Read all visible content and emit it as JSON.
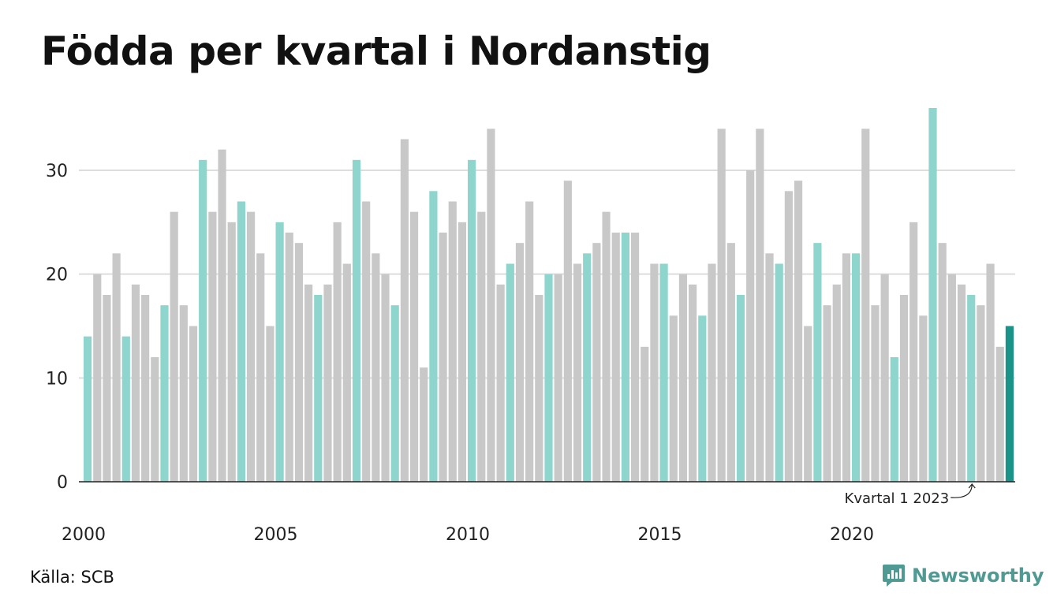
{
  "chart_data": {
    "type": "bar",
    "title": "Födda per kvartal i Nordanstig",
    "xlabel": "",
    "ylabel": "",
    "ylim": [
      0,
      36
    ],
    "yticks": [
      0,
      10,
      20,
      30
    ],
    "xtick_labels": [
      "2000",
      "2005",
      "2010",
      "2015",
      "2020"
    ],
    "grid": true,
    "categories": [
      "2000 K1",
      "2000 K2",
      "2000 K3",
      "2000 K4",
      "2001 K1",
      "2001 K2",
      "2001 K3",
      "2001 K4",
      "2002 K1",
      "2002 K2",
      "2002 K3",
      "2002 K4",
      "2003 K1",
      "2003 K2",
      "2003 K3",
      "2003 K4",
      "2004 K1",
      "2004 K2",
      "2004 K3",
      "2004 K4",
      "2005 K1",
      "2005 K2",
      "2005 K3",
      "2005 K4",
      "2006 K1",
      "2006 K2",
      "2006 K3",
      "2006 K4",
      "2007 K1",
      "2007 K2",
      "2007 K3",
      "2007 K4",
      "2008 K1",
      "2008 K2",
      "2008 K3",
      "2008 K4",
      "2009 K1",
      "2009 K2",
      "2009 K3",
      "2009 K4",
      "2010 K1",
      "2010 K2",
      "2010 K3",
      "2010 K4",
      "2011 K1",
      "2011 K2",
      "2011 K3",
      "2011 K4",
      "2012 K1",
      "2012 K2",
      "2012 K3",
      "2012 K4",
      "2013 K1",
      "2013 K2",
      "2013 K3",
      "2013 K4",
      "2014 K1",
      "2014 K2",
      "2014 K3",
      "2014 K4",
      "2015 K1",
      "2015 K2",
      "2015 K3",
      "2015 K4",
      "2016 K1",
      "2016 K2",
      "2016 K3",
      "2016 K4",
      "2017 K1",
      "2017 K2",
      "2017 K3",
      "2017 K4",
      "2018 K1",
      "2018 K2",
      "2018 K3",
      "2018 K4",
      "2019 K1",
      "2019 K2",
      "2019 K3",
      "2019 K4",
      "2020 K1",
      "2020 K2",
      "2020 K3",
      "2020 K4",
      "2021 K1",
      "2021 K2",
      "2021 K3",
      "2021 K4",
      "2022 K1",
      "2022 K2",
      "2022 K3",
      "2022 K4",
      "2023 K1",
      "2023 K2",
      "2023 K3",
      "2023 K4",
      "2024 K1"
    ],
    "values": [
      14,
      20,
      18,
      22,
      14,
      19,
      18,
      12,
      17,
      26,
      17,
      15,
      31,
      26,
      32,
      25,
      27,
      26,
      22,
      15,
      25,
      24,
      23,
      19,
      18,
      19,
      25,
      21,
      31,
      27,
      22,
      20,
      17,
      33,
      26,
      11,
      28,
      24,
      27,
      25,
      31,
      26,
      34,
      19,
      21,
      23,
      27,
      18,
      20,
      20,
      29,
      21,
      22,
      23,
      26,
      24,
      24,
      24,
      13,
      21,
      21,
      16,
      20,
      19,
      16,
      21,
      34,
      23,
      18,
      30,
      34,
      22,
      21,
      28,
      29,
      15,
      23,
      17,
      19,
      22,
      22,
      34,
      17,
      20,
      12,
      18,
      25,
      16,
      36,
      23,
      20,
      19,
      18,
      17,
      21,
      13,
      15
    ],
    "annotation": "Kvartal 1 2023",
    "colors": {
      "q1": "#8dd5cd",
      "other": "#c8c8c8",
      "latest": "#1a9488",
      "grid": "#dddddd",
      "axis": "#222222"
    }
  },
  "footer": {
    "source": "Källa: SCB",
    "brand": "Newsworthy"
  }
}
